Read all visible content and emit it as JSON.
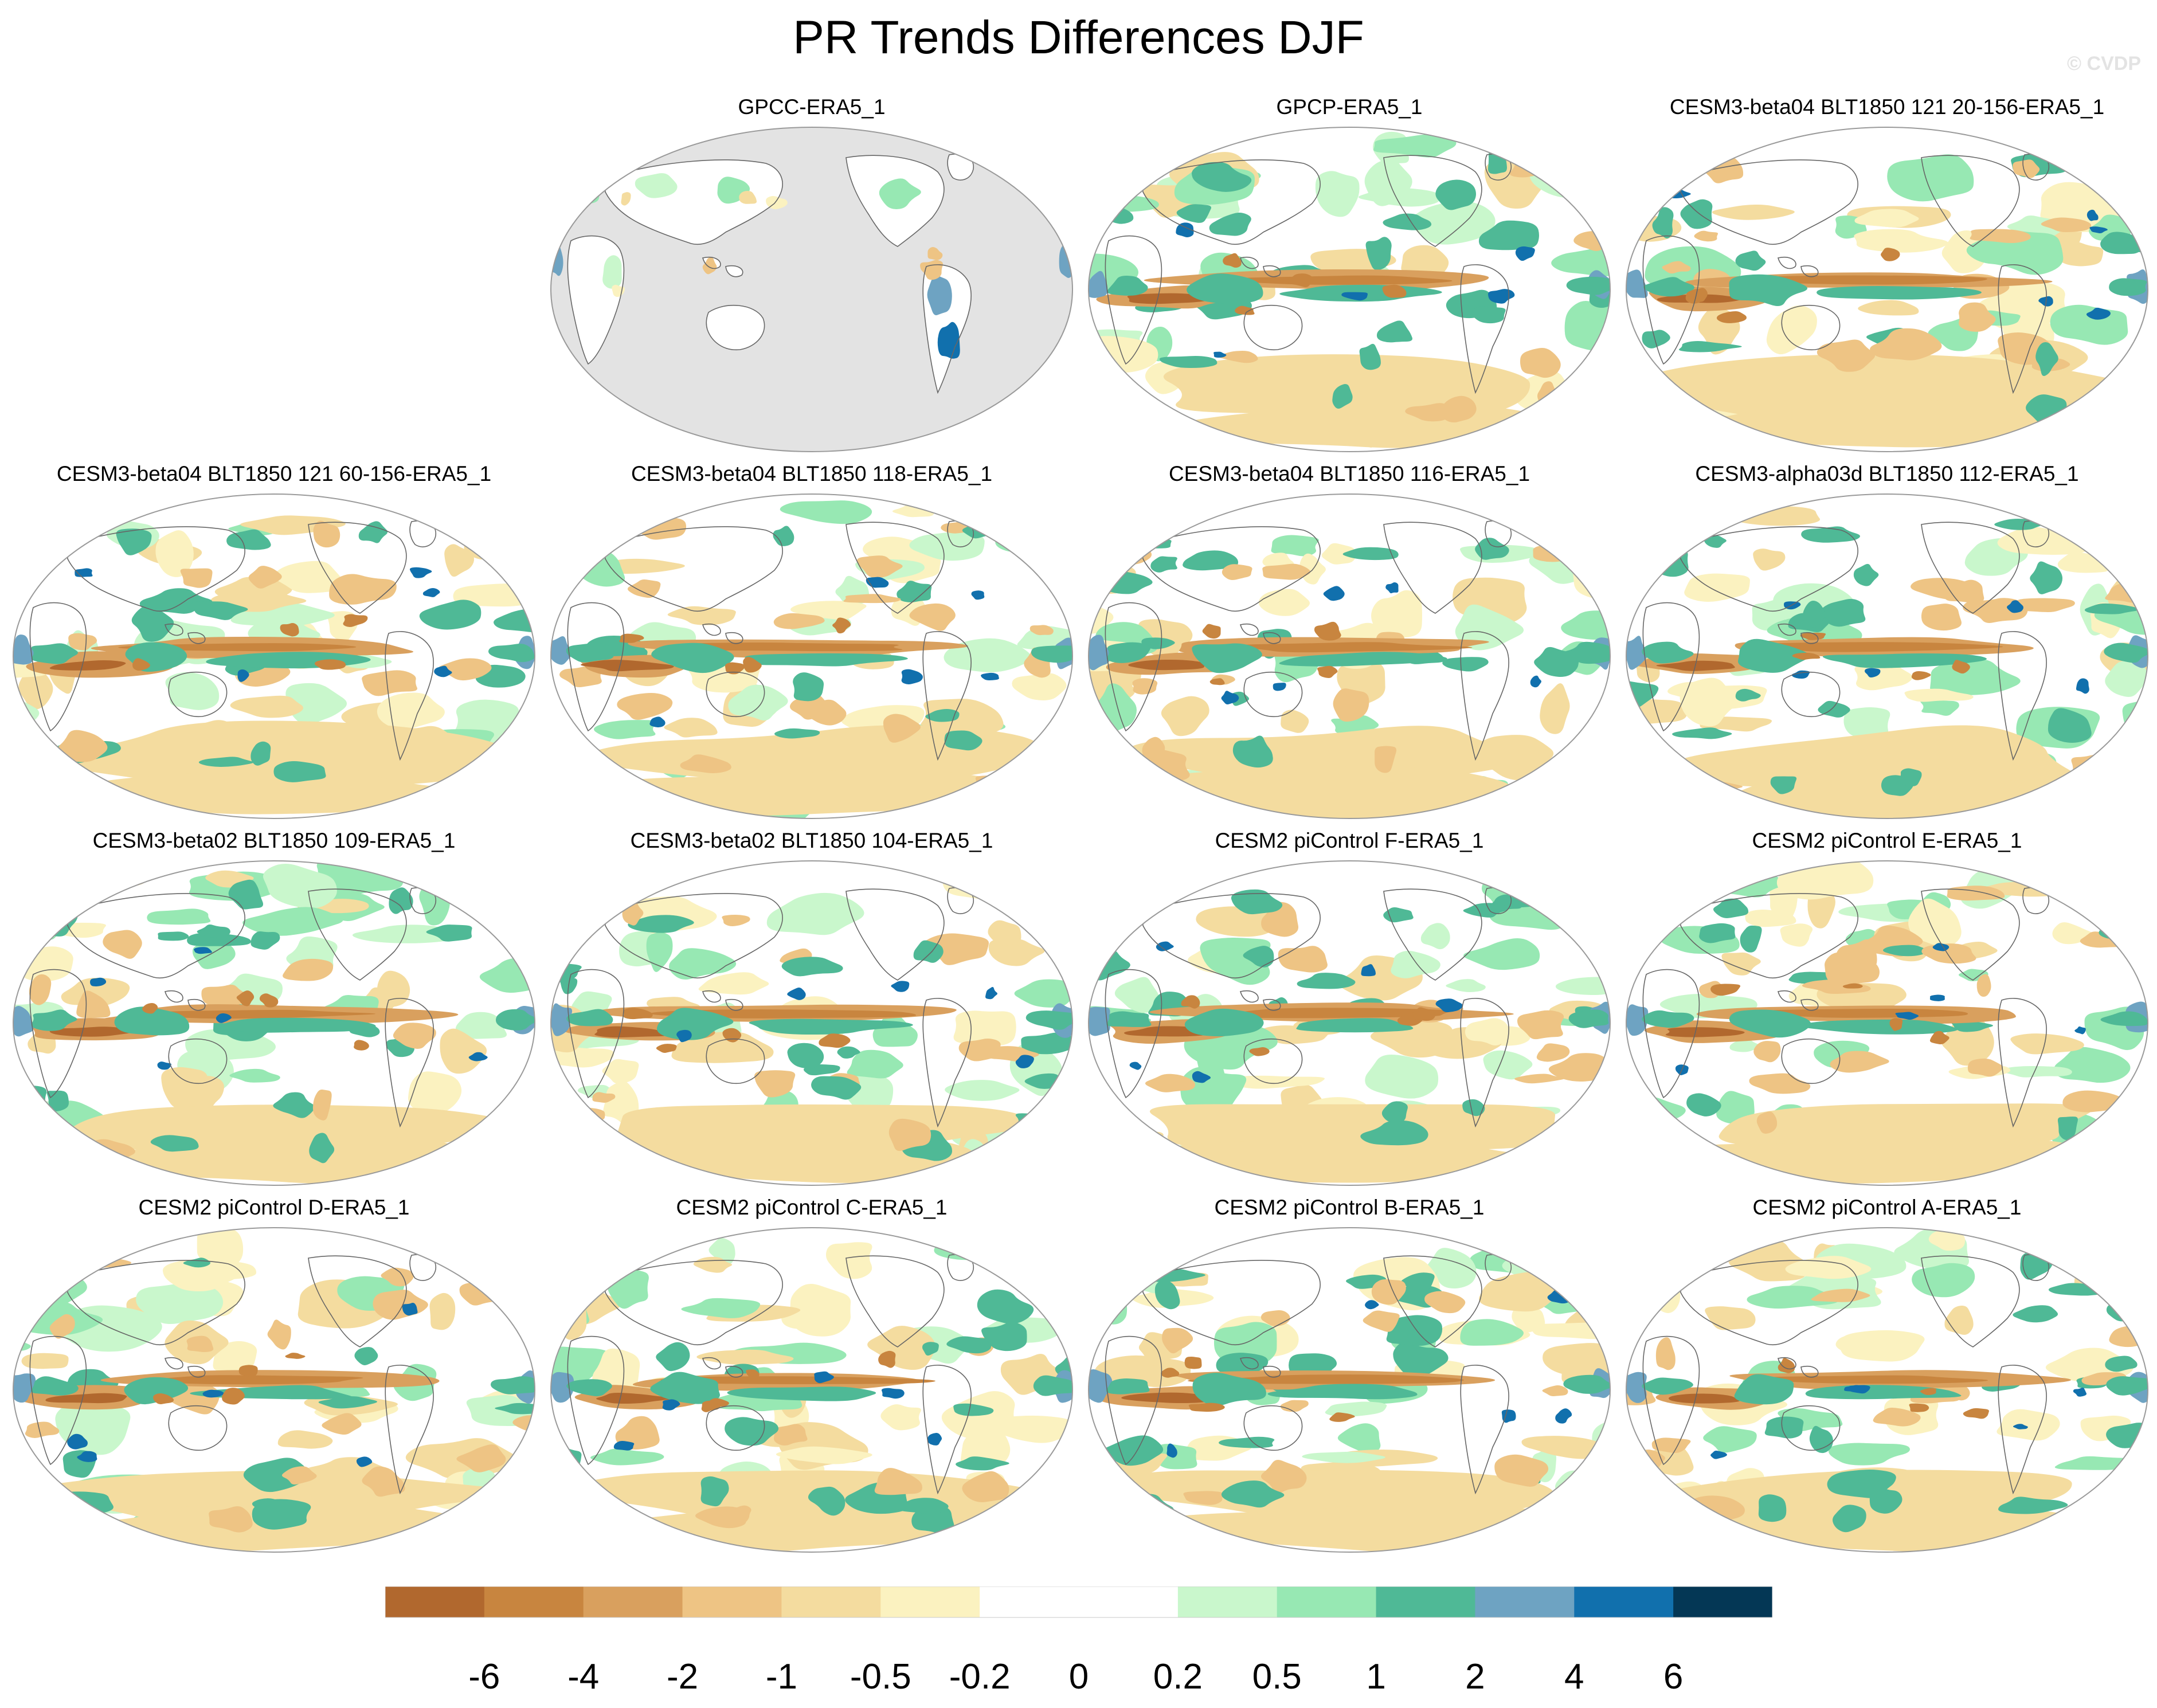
{
  "title": "PR Trends Differences DJF",
  "watermark": "© CVDP",
  "panels": [
    {
      "title": "GPCC-ERA5_1",
      "masked": true
    },
    {
      "title": "GPCP-ERA5_1",
      "masked": false
    },
    {
      "title": "CESM3-beta04 BLT1850 121 20-156-ERA5_1",
      "masked": false
    },
    {
      "title": "CESM3-beta04 BLT1850 121 60-156-ERA5_1",
      "masked": false
    },
    {
      "title": "CESM3-beta04 BLT1850 118-ERA5_1",
      "masked": false
    },
    {
      "title": "CESM3-beta04 BLT1850 116-ERA5_1",
      "masked": false
    },
    {
      "title": "CESM3-alpha03d BLT1850 112-ERA5_1",
      "masked": false
    },
    {
      "title": "CESM3-beta02 BLT1850 109-ERA5_1",
      "masked": false
    },
    {
      "title": "CESM3-beta02 BLT1850 104-ERA5_1",
      "masked": false
    },
    {
      "title": "CESM2 piControl F-ERA5_1",
      "masked": false
    },
    {
      "title": "CESM2 piControl E-ERA5_1",
      "masked": false
    },
    {
      "title": "CESM2 piControl D-ERA5_1",
      "masked": false
    },
    {
      "title": "CESM2 piControl C-ERA5_1",
      "masked": false
    },
    {
      "title": "CESM2 piControl B-ERA5_1",
      "masked": false
    },
    {
      "title": "CESM2 piControl A-ERA5_1",
      "masked": false
    }
  ],
  "colorbar": {
    "labels": [
      "-6",
      "-4",
      "-2",
      "-1",
      "-0.5",
      "-0.2",
      "0",
      "0.2",
      "0.5",
      "1",
      "2",
      "4",
      "6"
    ],
    "colors": [
      "#b1682e",
      "#c8853f",
      "#d9a05e",
      "#eec484",
      "#f4dc9f",
      "#fbf2c0",
      "#ffffff",
      "#ffffff",
      "#c9f7cc",
      "#97e8b3",
      "#4fb996",
      "#6ea3c2",
      "#1170ad",
      "#043755"
    ]
  },
  "map_colors": {
    "missing": "#e3e3e3",
    "ocean": "#ffffff",
    "outline": "#9a9a9a",
    "coast": "#666666"
  }
}
